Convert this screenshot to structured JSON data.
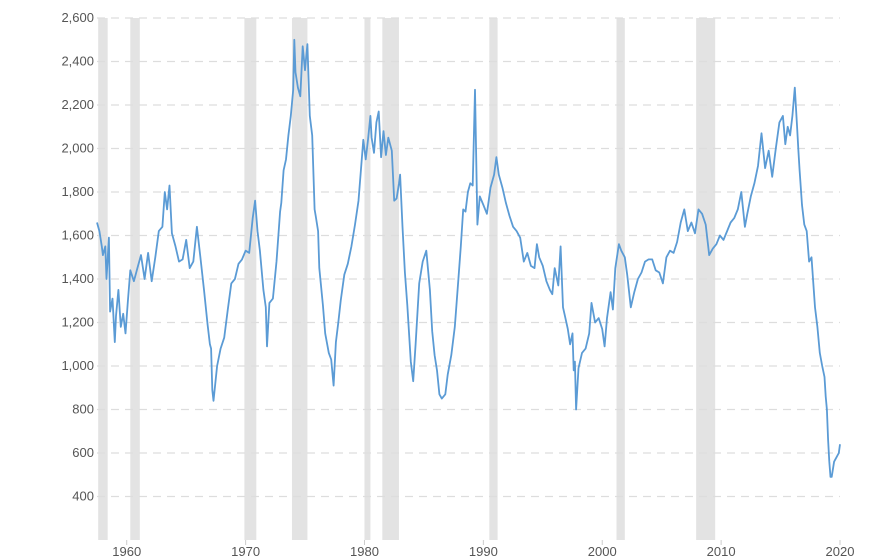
{
  "chart_data": {
    "type": "line",
    "title": "",
    "xlabel": "",
    "ylabel": "",
    "xlim": [
      1957.5,
      2020.0
    ],
    "ylim": [
      200,
      2600
    ],
    "y_ticks": [
      400,
      600,
      800,
      1000,
      1200,
      1400,
      1600,
      1800,
      2000,
      2200,
      2400,
      2600
    ],
    "y_tick_labels": [
      "400",
      "600",
      "800",
      "1,000",
      "1,200",
      "1,400",
      "1,600",
      "1,800",
      "2,000",
      "2,200",
      "2,400",
      "2,600"
    ],
    "x_ticks": [
      1960,
      1970,
      1980,
      1990,
      2000,
      2010,
      2020
    ],
    "x_tick_labels": [
      "1960",
      "1970",
      "1980",
      "1990",
      "2000",
      "2010",
      "2020"
    ],
    "grid": "horizontal dashed",
    "legend": "none",
    "colors": {
      "line": "#5b9bd5",
      "recession": "#e3e3e3",
      "grid": "#dddddd",
      "tick_text": "#555555"
    },
    "recession_bands": [
      [
        1957.6,
        1958.4
      ],
      [
        1960.3,
        1961.1
      ],
      [
        1969.9,
        1970.9
      ],
      [
        1973.9,
        1975.2
      ],
      [
        1980.0,
        1980.5
      ],
      [
        1981.5,
        1982.9
      ],
      [
        1990.5,
        1991.2
      ],
      [
        2001.2,
        2001.9
      ],
      [
        2007.9,
        2009.5
      ],
      [
        2020.1,
        2020.4
      ]
    ],
    "series": [
      {
        "values": [
          [
            1957.5,
            1660
          ],
          [
            1957.7,
            1620
          ],
          [
            1957.9,
            1550
          ],
          [
            1958.0,
            1510
          ],
          [
            1958.2,
            1550
          ],
          [
            1958.3,
            1400
          ],
          [
            1958.5,
            1590
          ],
          [
            1958.6,
            1250
          ],
          [
            1958.8,
            1310
          ],
          [
            1959.0,
            1110
          ],
          [
            1959.1,
            1230
          ],
          [
            1959.3,
            1350
          ],
          [
            1959.5,
            1180
          ],
          [
            1959.7,
            1240
          ],
          [
            1959.9,
            1150
          ],
          [
            1960.1,
            1300
          ],
          [
            1960.3,
            1440
          ],
          [
            1960.6,
            1390
          ],
          [
            1960.9,
            1450
          ],
          [
            1961.2,
            1510
          ],
          [
            1961.5,
            1400
          ],
          [
            1961.8,
            1520
          ],
          [
            1962.1,
            1390
          ],
          [
            1962.4,
            1500
          ],
          [
            1962.7,
            1620
          ],
          [
            1963.0,
            1640
          ],
          [
            1963.2,
            1800
          ],
          [
            1963.4,
            1720
          ],
          [
            1963.6,
            1830
          ],
          [
            1963.8,
            1610
          ],
          [
            1964.1,
            1550
          ],
          [
            1964.4,
            1480
          ],
          [
            1964.7,
            1490
          ],
          [
            1965.0,
            1580
          ],
          [
            1965.3,
            1450
          ],
          [
            1965.6,
            1480
          ],
          [
            1965.9,
            1640
          ],
          [
            1966.2,
            1500
          ],
          [
            1966.5,
            1350
          ],
          [
            1966.8,
            1190
          ],
          [
            1967.0,
            1100
          ],
          [
            1967.1,
            1080
          ],
          [
            1967.2,
            890
          ],
          [
            1967.3,
            840
          ],
          [
            1967.6,
            1000
          ],
          [
            1967.9,
            1080
          ],
          [
            1968.2,
            1130
          ],
          [
            1968.5,
            1260
          ],
          [
            1968.8,
            1380
          ],
          [
            1969.1,
            1400
          ],
          [
            1969.4,
            1470
          ],
          [
            1969.7,
            1490
          ],
          [
            1970.0,
            1530
          ],
          [
            1970.3,
            1520
          ],
          [
            1970.6,
            1680
          ],
          [
            1970.8,
            1760
          ],
          [
            1971.0,
            1620
          ],
          [
            1971.2,
            1530
          ],
          [
            1971.5,
            1350
          ],
          [
            1971.7,
            1270
          ],
          [
            1971.8,
            1090
          ],
          [
            1972.0,
            1290
          ],
          [
            1972.3,
            1310
          ],
          [
            1972.6,
            1480
          ],
          [
            1972.9,
            1710
          ],
          [
            1973.0,
            1750
          ],
          [
            1973.2,
            1900
          ],
          [
            1973.4,
            1950
          ],
          [
            1973.6,
            2060
          ],
          [
            1973.8,
            2150
          ],
          [
            1974.0,
            2270
          ],
          [
            1974.1,
            2500
          ],
          [
            1974.2,
            2350
          ],
          [
            1974.4,
            2280
          ],
          [
            1974.6,
            2240
          ],
          [
            1974.8,
            2470
          ],
          [
            1975.0,
            2360
          ],
          [
            1975.2,
            2480
          ],
          [
            1975.4,
            2150
          ],
          [
            1975.6,
            2060
          ],
          [
            1975.8,
            1720
          ],
          [
            1975.9,
            1690
          ],
          [
            1976.1,
            1620
          ],
          [
            1976.2,
            1450
          ],
          [
            1976.5,
            1280
          ],
          [
            1976.7,
            1150
          ],
          [
            1977.0,
            1060
          ],
          [
            1977.2,
            1030
          ],
          [
            1977.4,
            910
          ],
          [
            1977.6,
            1110
          ],
          [
            1977.8,
            1200
          ],
          [
            1978.0,
            1300
          ],
          [
            1978.3,
            1420
          ],
          [
            1978.6,
            1470
          ],
          [
            1978.9,
            1550
          ],
          [
            1979.2,
            1650
          ],
          [
            1979.5,
            1760
          ],
          [
            1979.7,
            1900
          ],
          [
            1979.9,
            2040
          ],
          [
            1980.1,
            1950
          ],
          [
            1980.3,
            2040
          ],
          [
            1980.5,
            2150
          ],
          [
            1980.6,
            2050
          ],
          [
            1980.8,
            1980
          ],
          [
            1981.0,
            2120
          ],
          [
            1981.2,
            2170
          ],
          [
            1981.4,
            1960
          ],
          [
            1981.6,
            2080
          ],
          [
            1981.8,
            1970
          ],
          [
            1982.0,
            2050
          ],
          [
            1982.3,
            1990
          ],
          [
            1982.5,
            1760
          ],
          [
            1982.7,
            1770
          ],
          [
            1982.9,
            1840
          ],
          [
            1983.0,
            1880
          ],
          [
            1983.2,
            1640
          ],
          [
            1983.4,
            1430
          ],
          [
            1983.6,
            1280
          ],
          [
            1983.9,
            1020
          ],
          [
            1984.1,
            930
          ],
          [
            1984.3,
            1100
          ],
          [
            1984.6,
            1380
          ],
          [
            1984.9,
            1480
          ],
          [
            1985.2,
            1530
          ],
          [
            1985.3,
            1470
          ],
          [
            1985.5,
            1350
          ],
          [
            1985.7,
            1160
          ],
          [
            1985.9,
            1050
          ],
          [
            1986.1,
            980
          ],
          [
            1986.3,
            870
          ],
          [
            1986.5,
            850
          ],
          [
            1986.8,
            870
          ],
          [
            1987.0,
            960
          ],
          [
            1987.3,
            1050
          ],
          [
            1987.6,
            1180
          ],
          [
            1987.9,
            1400
          ],
          [
            1988.1,
            1550
          ],
          [
            1988.3,
            1720
          ],
          [
            1988.5,
            1710
          ],
          [
            1988.7,
            1800
          ],
          [
            1988.9,
            1840
          ],
          [
            1989.1,
            1830
          ],
          [
            1989.3,
            2270
          ],
          [
            1989.5,
            1650
          ],
          [
            1989.7,
            1780
          ],
          [
            1990.0,
            1740
          ],
          [
            1990.3,
            1700
          ],
          [
            1990.6,
            1820
          ],
          [
            1990.9,
            1880
          ],
          [
            1991.1,
            1960
          ],
          [
            1991.3,
            1880
          ],
          [
            1991.6,
            1820
          ],
          [
            1991.9,
            1750
          ],
          [
            1992.2,
            1690
          ],
          [
            1992.5,
            1640
          ],
          [
            1992.8,
            1620
          ],
          [
            1993.1,
            1590
          ],
          [
            1993.4,
            1480
          ],
          [
            1993.7,
            1520
          ],
          [
            1994.0,
            1460
          ],
          [
            1994.3,
            1450
          ],
          [
            1994.5,
            1560
          ],
          [
            1994.7,
            1500
          ],
          [
            1995.0,
            1460
          ],
          [
            1995.3,
            1390
          ],
          [
            1995.6,
            1350
          ],
          [
            1995.8,
            1330
          ],
          [
            1996.0,
            1450
          ],
          [
            1996.3,
            1370
          ],
          [
            1996.5,
            1550
          ],
          [
            1996.7,
            1270
          ],
          [
            1996.9,
            1220
          ],
          [
            1997.1,
            1170
          ],
          [
            1997.3,
            1100
          ],
          [
            1997.5,
            1150
          ],
          [
            1997.6,
            980
          ],
          [
            1997.7,
            1020
          ],
          [
            1997.8,
            800
          ],
          [
            1998.0,
            990
          ],
          [
            1998.3,
            1060
          ],
          [
            1998.6,
            1080
          ],
          [
            1998.9,
            1150
          ],
          [
            1999.1,
            1290
          ],
          [
            1999.4,
            1200
          ],
          [
            1999.7,
            1220
          ],
          [
            2000.0,
            1170
          ],
          [
            2000.2,
            1090
          ],
          [
            2000.4,
            1220
          ],
          [
            2000.7,
            1340
          ],
          [
            2000.9,
            1260
          ],
          [
            2001.1,
            1450
          ],
          [
            2001.4,
            1560
          ],
          [
            2001.6,
            1530
          ],
          [
            2001.9,
            1500
          ],
          [
            2002.1,
            1420
          ],
          [
            2002.4,
            1270
          ],
          [
            2002.7,
            1340
          ],
          [
            2003.0,
            1400
          ],
          [
            2003.3,
            1430
          ],
          [
            2003.6,
            1480
          ],
          [
            2003.9,
            1490
          ],
          [
            2004.2,
            1490
          ],
          [
            2004.5,
            1440
          ],
          [
            2004.8,
            1430
          ],
          [
            2005.1,
            1380
          ],
          [
            2005.4,
            1500
          ],
          [
            2005.7,
            1530
          ],
          [
            2006.0,
            1520
          ],
          [
            2006.3,
            1570
          ],
          [
            2006.6,
            1660
          ],
          [
            2006.9,
            1720
          ],
          [
            2007.2,
            1620
          ],
          [
            2007.5,
            1660
          ],
          [
            2007.8,
            1610
          ],
          [
            2008.1,
            1720
          ],
          [
            2008.4,
            1700
          ],
          [
            2008.7,
            1650
          ],
          [
            2009.0,
            1510
          ],
          [
            2009.3,
            1540
          ],
          [
            2009.6,
            1560
          ],
          [
            2009.9,
            1600
          ],
          [
            2010.2,
            1580
          ],
          [
            2010.5,
            1620
          ],
          [
            2010.8,
            1660
          ],
          [
            2011.1,
            1680
          ],
          [
            2011.4,
            1720
          ],
          [
            2011.7,
            1800
          ],
          [
            2012.0,
            1640
          ],
          [
            2012.2,
            1700
          ],
          [
            2012.5,
            1780
          ],
          [
            2012.8,
            1840
          ],
          [
            2013.1,
            1920
          ],
          [
            2013.4,
            2070
          ],
          [
            2013.7,
            1910
          ],
          [
            2014.0,
            1990
          ],
          [
            2014.3,
            1870
          ],
          [
            2014.6,
            2000
          ],
          [
            2014.9,
            2120
          ],
          [
            2015.2,
            2150
          ],
          [
            2015.4,
            2020
          ],
          [
            2015.6,
            2100
          ],
          [
            2015.8,
            2060
          ],
          [
            2016.0,
            2150
          ],
          [
            2016.2,
            2280
          ],
          [
            2016.4,
            2090
          ],
          [
            2016.5,
            1990
          ],
          [
            2016.6,
            1900
          ],
          [
            2016.8,
            1740
          ],
          [
            2017.0,
            1650
          ],
          [
            2017.2,
            1620
          ],
          [
            2017.4,
            1480
          ],
          [
            2017.6,
            1500
          ],
          [
            2017.9,
            1270
          ],
          [
            2018.1,
            1180
          ],
          [
            2018.3,
            1060
          ],
          [
            2018.5,
            1000
          ],
          [
            2018.7,
            950
          ],
          [
            2018.8,
            860
          ],
          [
            2018.9,
            800
          ],
          [
            2019.0,
            660
          ],
          [
            2019.1,
            560
          ],
          [
            2019.2,
            490
          ],
          [
            2019.3,
            490
          ],
          [
            2019.5,
            560
          ],
          [
            2019.7,
            580
          ],
          [
            2019.9,
            600
          ],
          [
            2020.0,
            640
          ]
        ]
      }
    ]
  }
}
